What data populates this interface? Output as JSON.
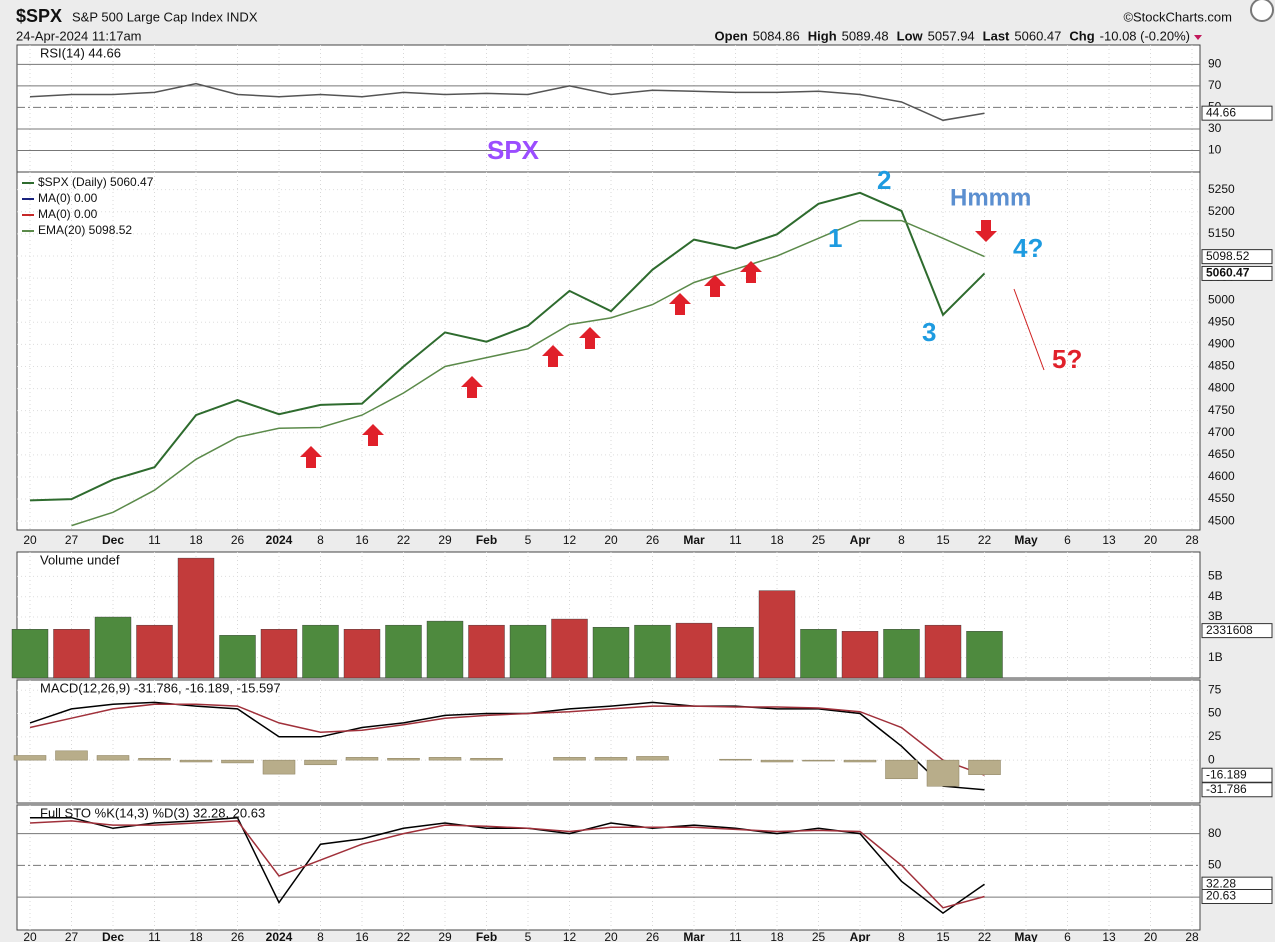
{
  "header": {
    "symbol": "$SPX",
    "name": "S&P 500 Large Cap Index INDX",
    "source": "©StockCharts.com",
    "datetime": "24-Apr-2024 11:17am",
    "quote": [
      {
        "label": "Open",
        "value": 5084.86
      },
      {
        "label": "High",
        "value": 5089.48
      },
      {
        "label": "Low",
        "value": 5057.94
      },
      {
        "label": "Last",
        "value": 5060.47
      },
      {
        "label": "Chg",
        "value": "-10.08 (-0.20%)"
      }
    ]
  },
  "x_axis": {
    "categories": [
      "20",
      "27",
      "Dec",
      "11",
      "18",
      "26",
      "2024",
      "8",
      "16",
      "22",
      "29",
      "Feb",
      "5",
      "12",
      "20",
      "26",
      "Mar",
      "11",
      "18",
      "25",
      "Apr",
      "8",
      "15",
      "22",
      "May",
      "6",
      "13",
      "20",
      "28"
    ]
  },
  "chart_data": [
    {
      "type": "line",
      "title": "RSI(14) 44.66",
      "ylim": [
        -10,
        108
      ],
      "yticks": [
        90,
        70,
        50,
        30,
        10
      ],
      "grid": true,
      "series": [
        {
          "name": "RSI(14)",
          "color": "#555555",
          "values": [
            60,
            62,
            62,
            64,
            72,
            62,
            60,
            62,
            60,
            64,
            62,
            63,
            62,
            70,
            62,
            66,
            65,
            64,
            64,
            65,
            62,
            55,
            38,
            44.66,
            null,
            null,
            null,
            null,
            null
          ]
        }
      ],
      "last_values": [
        44.66
      ]
    },
    {
      "type": "line",
      "title": "SPX",
      "ylim": [
        4480,
        5290
      ],
      "yticks": [
        4500,
        4550,
        4600,
        4650,
        4700,
        4750,
        4800,
        4850,
        4900,
        4950,
        5000,
        5050,
        5100,
        5150,
        5200,
        5250
      ],
      "grid": true,
      "series": [
        {
          "name": "$SPX (Daily) 5060.47",
          "color": "#2e6b2e",
          "values": [
            4547,
            4550,
            4594,
            4622,
            4740,
            4774,
            4742,
            4763,
            4766,
            4850,
            4927,
            4906,
            4942,
            5021,
            4975,
            5069,
            5137,
            5117,
            5149,
            5218,
            5243,
            5202,
            4967,
            5060.47,
            null,
            null,
            null,
            null,
            null
          ]
        },
        {
          "name": "MA(0) 0.00",
          "color": "#1a237e",
          "values": [
            null,
            null,
            null,
            null,
            null,
            null,
            null,
            null,
            null,
            null,
            null,
            null,
            null,
            null,
            null,
            null,
            null,
            null,
            null,
            null,
            null,
            null,
            null,
            null,
            null,
            null,
            null,
            null,
            null
          ]
        },
        {
          "name": "MA(0) 0.00",
          "color": "#c62828",
          "values": [
            null,
            null,
            null,
            null,
            null,
            null,
            null,
            null,
            null,
            null,
            null,
            null,
            null,
            null,
            null,
            null,
            null,
            null,
            null,
            null,
            null,
            null,
            null,
            null,
            null,
            null,
            null,
            null,
            null
          ]
        },
        {
          "name": "EMA(20) 5098.52",
          "color": "#5b8a4a",
          "values": [
            null,
            4490,
            4520,
            4570,
            4640,
            4690,
            4710,
            4712,
            4740,
            4790,
            4850,
            4870,
            4890,
            4945,
            4960,
            4990,
            5040,
            5070,
            5100,
            5140,
            5180,
            5180,
            5140,
            5098.52,
            null,
            null,
            null,
            null,
            null
          ]
        }
      ],
      "last_values": [
        5098.52,
        5060.47
      ],
      "annotations": [
        {
          "text": "Hmmm",
          "color": "#5b8fd0"
        },
        {
          "text": "1",
          "color": "#1e9be0"
        },
        {
          "text": "2",
          "color": "#1e9be0"
        },
        {
          "text": "3",
          "color": "#1e9be0"
        },
        {
          "text": "4?",
          "color": "#1e9be0"
        },
        {
          "text": "5?",
          "color": "#e0202a"
        }
      ]
    },
    {
      "type": "bar",
      "title": "Volume undef",
      "ylim": [
        0,
        6.2
      ],
      "yticks": [
        {
          "value": 5,
          "label": "5B"
        },
        {
          "value": 4,
          "label": "4B"
        },
        {
          "value": 3,
          "label": "3B"
        },
        {
          "value": 1,
          "label": "1B"
        }
      ],
      "grid": true,
      "series": [
        {
          "name": "Volume",
          "values": [
            2.4,
            2.4,
            3.0,
            2.6,
            5.9,
            2.1,
            2.4,
            2.6,
            2.4,
            2.6,
            2.8,
            2.6,
            2.6,
            2.9,
            2.5,
            2.6,
            2.7,
            2.5,
            4.3,
            2.4,
            2.3,
            2.4,
            2.6,
            2.3,
            null,
            null,
            null,
            null,
            null
          ],
          "colors": [
            "#4e8a3e",
            "#c23b3b",
            "#4e8a3e",
            "#c23b3b",
            "#c23b3b",
            "#4e8a3e",
            "#c23b3b",
            "#4e8a3e",
            "#c23b3b",
            "#4e8a3e",
            "#4e8a3e",
            "#c23b3b",
            "#4e8a3e",
            "#c23b3b",
            "#4e8a3e",
            "#4e8a3e",
            "#c23b3b",
            "#4e8a3e",
            "#c23b3b",
            "#4e8a3e",
            "#c23b3b",
            "#4e8a3e",
            "#c23b3b",
            "#4e8a3e",
            null,
            null,
            null,
            null,
            null
          ]
        }
      ],
      "last_values": [
        {
          "value": 2.331608,
          "label": "2331608"
        }
      ]
    },
    {
      "type": "line",
      "title": "MACD(12,26,9) -31.786, -16.189, -15.597",
      "ylim": [
        -46,
        86
      ],
      "yticks": [
        75,
        50,
        25,
        0
      ],
      "grid": true,
      "series": [
        {
          "name": "MACD",
          "color": "#000000",
          "values": [
            40,
            55,
            60,
            62,
            58,
            55,
            25,
            25,
            35,
            40,
            48,
            50,
            50,
            55,
            58,
            62,
            58,
            58,
            55,
            55,
            50,
            15,
            -28,
            -31.786,
            null,
            null,
            null,
            null,
            null
          ]
        },
        {
          "name": "Signal",
          "color": "#a0303a",
          "values": [
            35,
            45,
            55,
            60,
            60,
            58,
            40,
            30,
            32,
            38,
            45,
            48,
            50,
            52,
            55,
            58,
            58,
            57,
            57,
            56,
            52,
            35,
            0,
            -16.189,
            null,
            null,
            null,
            null,
            null
          ]
        },
        {
          "name": "Histogram",
          "type": "bar",
          "color": "#b8ad8a",
          "values": [
            5,
            10,
            5,
            2,
            -2,
            -3,
            -15,
            -5,
            3,
            2,
            3,
            2,
            0,
            3,
            3,
            4,
            0,
            1,
            -2,
            -1,
            -2,
            -20,
            -28,
            -15.597,
            null,
            null,
            null,
            null,
            null
          ]
        }
      ],
      "last_values": [
        -16.189,
        -31.786
      ]
    },
    {
      "type": "line",
      "title": "Full STO %K(14,3) %D(3) 32.28, 20.63",
      "ylim": [
        -11,
        107
      ],
      "yticks": [
        80,
        50,
        20
      ],
      "grid": true,
      "series": [
        {
          "name": "%K",
          "color": "#000000",
          "values": [
            95,
            95,
            85,
            90,
            92,
            95,
            15,
            70,
            75,
            85,
            90,
            85,
            85,
            80,
            90,
            85,
            88,
            85,
            80,
            85,
            80,
            35,
            5,
            32.28,
            null,
            null,
            null,
            null,
            null
          ]
        },
        {
          "name": "%D",
          "color": "#a0303a",
          "values": [
            90,
            92,
            88,
            88,
            90,
            92,
            40,
            55,
            70,
            80,
            88,
            87,
            85,
            82,
            86,
            86,
            86,
            84,
            82,
            83,
            82,
            50,
            10,
            20.63,
            null,
            null,
            null,
            null,
            null
          ]
        }
      ],
      "last_values": [
        32.28,
        20.63
      ]
    }
  ]
}
